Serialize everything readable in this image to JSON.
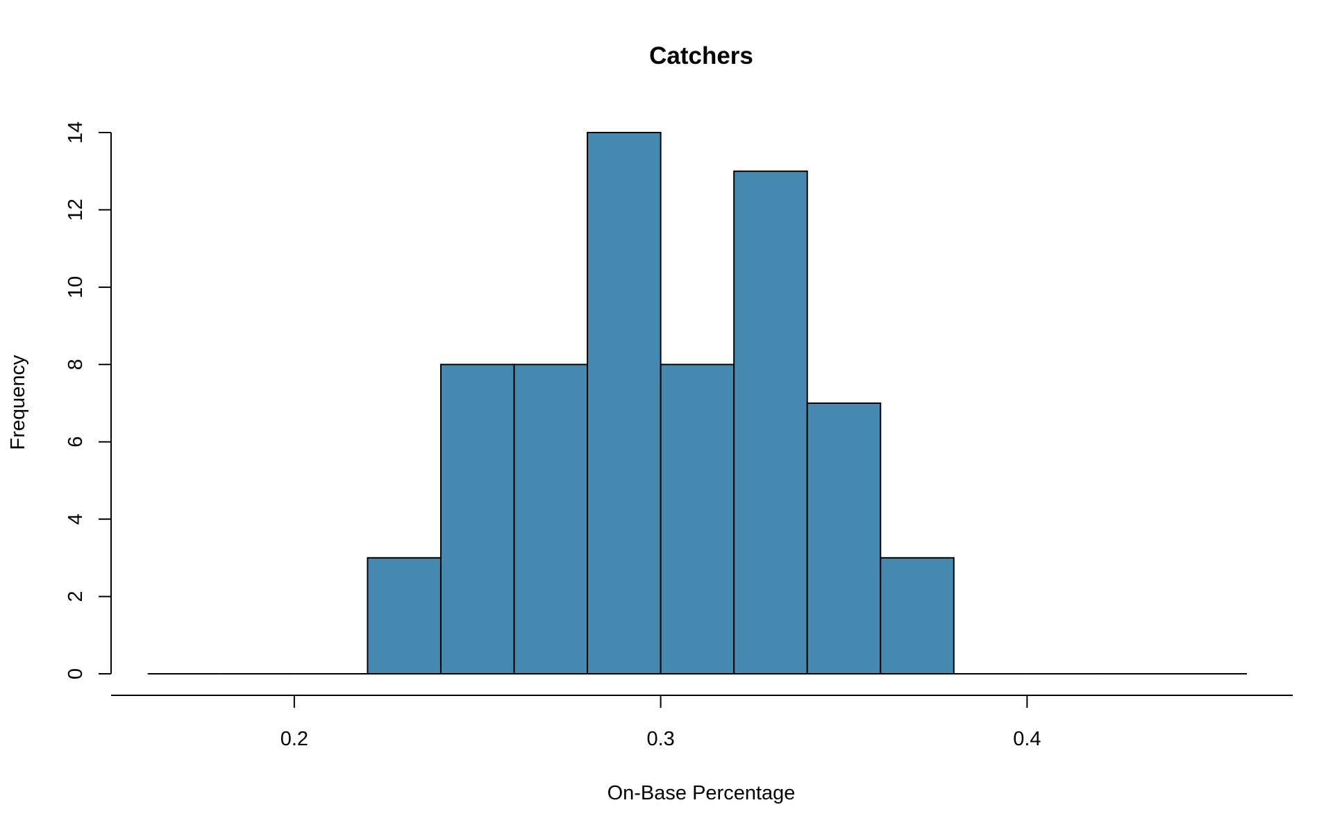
{
  "chart_data": {
    "type": "bar",
    "title": "Catchers",
    "xlabel": "On-Base Percentage",
    "ylabel": "Frequency",
    "bin_edges": [
      0.16,
      0.18,
      0.2,
      0.22,
      0.24,
      0.26,
      0.28,
      0.3,
      0.32,
      0.34,
      0.36,
      0.38,
      0.4,
      0.42,
      0.44,
      0.46
    ],
    "values": [
      0,
      0,
      0,
      3,
      8,
      8,
      14,
      8,
      13,
      7,
      3,
      0,
      0,
      0,
      0
    ],
    "xlim": [
      0.15,
      0.4725
    ],
    "ylim": [
      0,
      14
    ],
    "x_ticks": [
      0.2,
      0.3,
      0.4
    ],
    "x_tick_labels": [
      "0.2",
      "0.3",
      "0.4"
    ],
    "y_ticks": [
      0,
      2,
      4,
      6,
      8,
      10,
      12,
      14
    ],
    "y_tick_labels": [
      "0",
      "2",
      "4",
      "6",
      "8",
      "10",
      "12",
      "14"
    ],
    "bar_color": "#4689b0",
    "grid": false,
    "legend": "none"
  }
}
